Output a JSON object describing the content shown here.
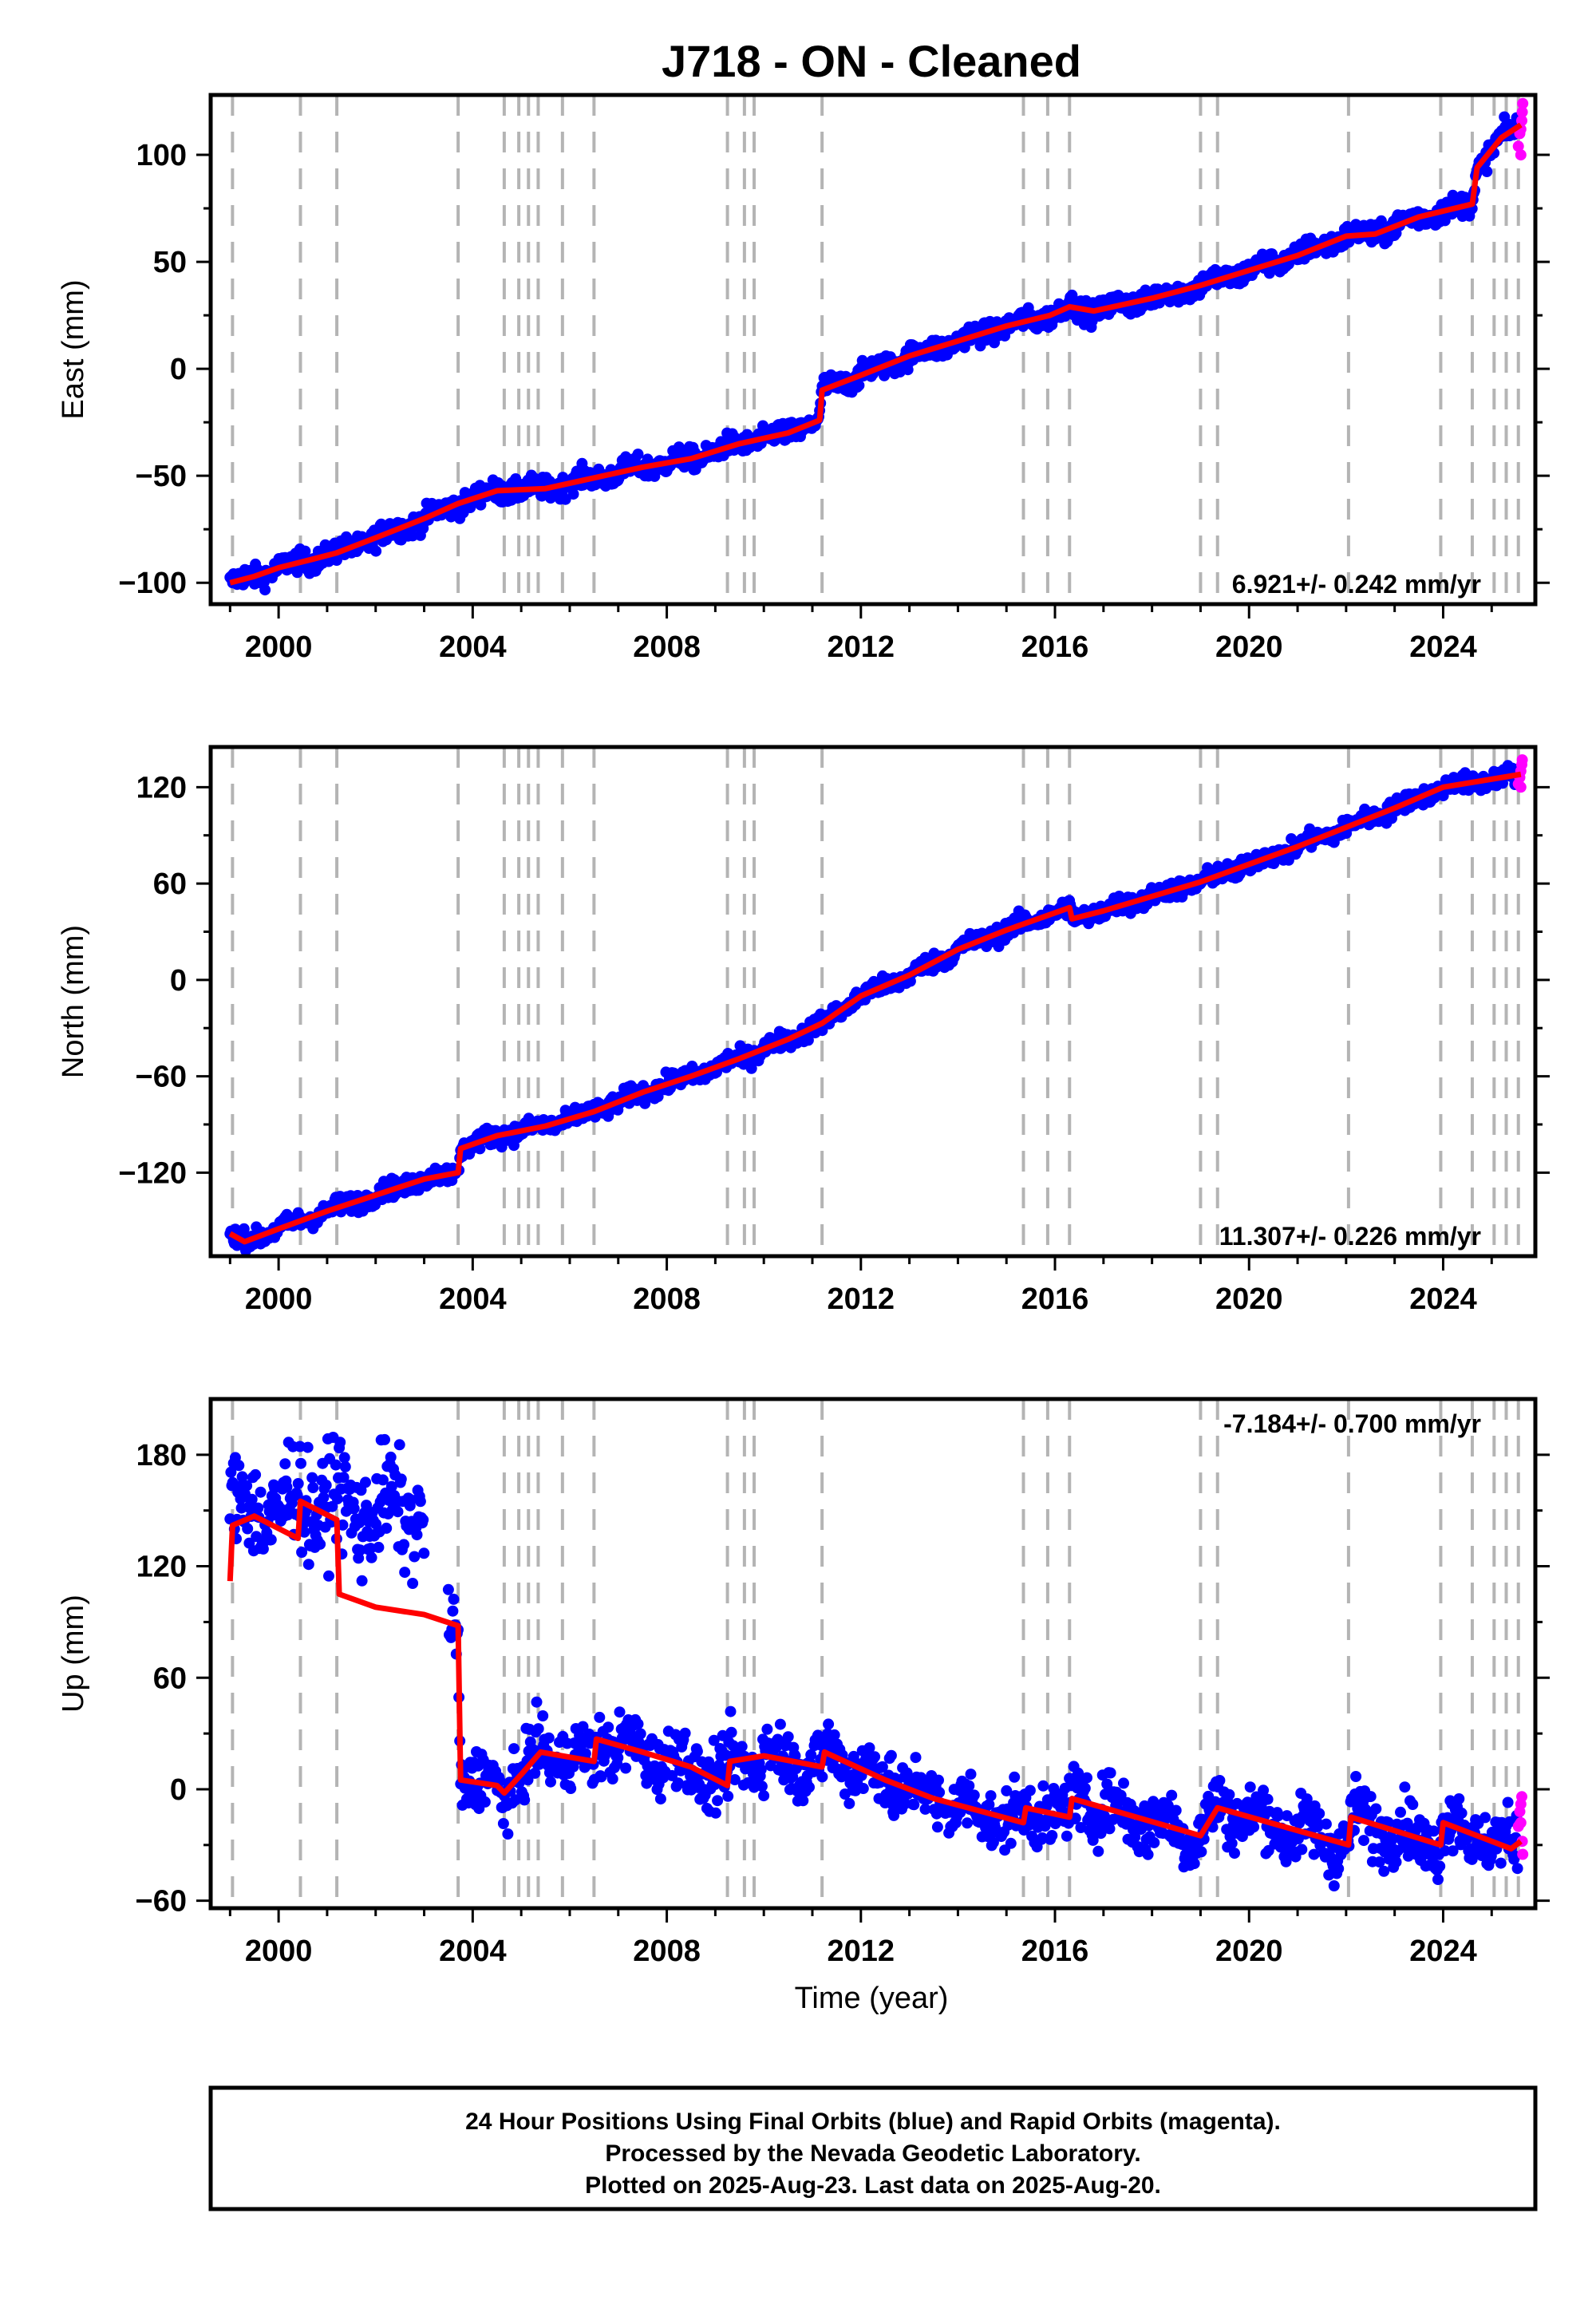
{
  "chart_data": {
    "type": "scatter",
    "title": "J718  - ON - Cleaned",
    "xlabel": "Time (year)",
    "x_ticks": [
      "2000",
      "2004",
      "2008",
      "2012",
      "2016",
      "2020",
      "2024"
    ],
    "xlim": [
      1998.6,
      2025.9
    ],
    "colors": {
      "final": "#0000ff",
      "rapid": "#ff00ff",
      "model": "#ff0000",
      "event": "#b4b4b4"
    },
    "event_years": [
      1999.05,
      2000.45,
      2001.2,
      2003.7,
      2004.65,
      2004.95,
      2005.15,
      2005.35,
      2005.85,
      2006.5,
      2009.25,
      2009.6,
      2009.8,
      2011.2,
      2015.35,
      2015.85,
      2016.3,
      2019.0,
      2019.35,
      2022.05,
      2023.95,
      2024.6,
      2025.05,
      2025.3,
      2025.55
    ],
    "panels": [
      {
        "ylabel": "East (mm)",
        "ylim": [
          -110,
          128
        ],
        "y_ticks": [
          "−100",
          "−50",
          "0",
          "50",
          "100"
        ],
        "y_tick_values": [
          -100,
          -50,
          0,
          50,
          100
        ],
        "rate": "6.921+/- 0.242 mm/yr",
        "rate_position": "bottom-right",
        "scatter_sd": 2.5,
        "model": [
          [
            1999.0,
            -100
          ],
          [
            1999.5,
            -97
          ],
          [
            2000.0,
            -93
          ],
          [
            2000.7,
            -89
          ],
          [
            2001.2,
            -86
          ],
          [
            2002.0,
            -79
          ],
          [
            2003.0,
            -70
          ],
          [
            2003.7,
            -63
          ],
          [
            2004.5,
            -57
          ],
          [
            2005.5,
            -56
          ],
          [
            2006.5,
            -51
          ],
          [
            2007.5,
            -46
          ],
          [
            2008.5,
            -42
          ],
          [
            2009.5,
            -35
          ],
          [
            2010.5,
            -30
          ],
          [
            2011.15,
            -24
          ],
          [
            2011.2,
            -10
          ],
          [
            2012.0,
            -3
          ],
          [
            2013.0,
            6
          ],
          [
            2014.0,
            13
          ],
          [
            2015.0,
            20
          ],
          [
            2015.9,
            25
          ],
          [
            2016.3,
            29
          ],
          [
            2016.8,
            27
          ],
          [
            2018.0,
            33
          ],
          [
            2019.0,
            39
          ],
          [
            2020.0,
            46
          ],
          [
            2021.0,
            53
          ],
          [
            2022.0,
            62
          ],
          [
            2022.6,
            63
          ],
          [
            2023.5,
            71
          ],
          [
            2024.6,
            77
          ],
          [
            2024.7,
            94
          ],
          [
            2025.2,
            108
          ],
          [
            2025.6,
            114
          ]
        ],
        "rapid": [
          [
            2025.55,
            104
          ],
          [
            2025.58,
            110
          ],
          [
            2025.6,
            112
          ],
          [
            2025.62,
            116
          ],
          [
            2025.63,
            120
          ],
          [
            2025.64,
            124
          ],
          [
            2025.6,
            100
          ]
        ]
      },
      {
        "ylabel": "North (mm)",
        "ylim": [
          -172,
          145
        ],
        "y_ticks": [
          "−120",
          "−60",
          "0",
          "60",
          "120"
        ],
        "y_tick_values": [
          -120,
          -60,
          0,
          60,
          120
        ],
        "rate": "11.307+/- 0.226 mm/yr",
        "rate_position": "bottom-right",
        "scatter_sd": 2.8,
        "model": [
          [
            1999.0,
            -158
          ],
          [
            1999.3,
            -163
          ],
          [
            2000.0,
            -155
          ],
          [
            2001.0,
            -144
          ],
          [
            2002.0,
            -134
          ],
          [
            2003.0,
            -124
          ],
          [
            2003.7,
            -120
          ],
          [
            2003.75,
            -105
          ],
          [
            2004.5,
            -97
          ],
          [
            2005.5,
            -91
          ],
          [
            2006.5,
            -82
          ],
          [
            2007.5,
            -70
          ],
          [
            2008.5,
            -60
          ],
          [
            2009.5,
            -49
          ],
          [
            2010.5,
            -37
          ],
          [
            2011.2,
            -27
          ],
          [
            2012.0,
            -10
          ],
          [
            2013.0,
            3
          ],
          [
            2014.0,
            19
          ],
          [
            2015.0,
            31
          ],
          [
            2016.3,
            45
          ],
          [
            2016.35,
            38
          ],
          [
            2017.0,
            43
          ],
          [
            2018.0,
            52
          ],
          [
            2019.0,
            61
          ],
          [
            2020.0,
            72
          ],
          [
            2021.0,
            83
          ],
          [
            2022.0,
            95
          ],
          [
            2023.0,
            107
          ],
          [
            2024.0,
            120
          ],
          [
            2025.0,
            125
          ],
          [
            2025.6,
            128
          ]
        ],
        "rapid": [
          [
            2025.55,
            122
          ],
          [
            2025.58,
            126
          ],
          [
            2025.6,
            130
          ],
          [
            2025.62,
            134
          ],
          [
            2025.63,
            137
          ],
          [
            2025.6,
            120
          ]
        ]
      },
      {
        "ylabel": "Up (mm)",
        "ylim": [
          -64,
          210
        ],
        "y_ticks": [
          "−60",
          "0",
          "60",
          "120",
          "180"
        ],
        "y_tick_values": [
          -60,
          0,
          60,
          120,
          180
        ],
        "rate": "-7.184+/- 0.700 mm/yr",
        "rate_position": "top-right",
        "scatter_sd": 8,
        "model": [
          [
            1999.0,
            112
          ],
          [
            1999.05,
            142
          ],
          [
            1999.5,
            147
          ],
          [
            2000.4,
            135
          ],
          [
            2000.45,
            155
          ],
          [
            2001.2,
            145
          ],
          [
            2001.25,
            105
          ],
          [
            2002.0,
            98
          ],
          [
            2003.0,
            94
          ],
          [
            2003.7,
            88
          ],
          [
            2003.75,
            5
          ],
          [
            2004.5,
            2
          ],
          [
            2004.65,
            -2
          ],
          [
            2005.0,
            8
          ],
          [
            2005.4,
            20
          ],
          [
            2006.5,
            15
          ],
          [
            2006.55,
            27
          ],
          [
            2007.5,
            20
          ],
          [
            2008.5,
            12
          ],
          [
            2009.25,
            2
          ],
          [
            2009.3,
            15
          ],
          [
            2010.0,
            18
          ],
          [
            2011.2,
            12
          ],
          [
            2011.25,
            20
          ],
          [
            2012.5,
            5
          ],
          [
            2013.5,
            -5
          ],
          [
            2015.35,
            -18
          ],
          [
            2015.4,
            -10
          ],
          [
            2016.3,
            -15
          ],
          [
            2016.35,
            -5
          ],
          [
            2019.0,
            -25
          ],
          [
            2019.35,
            -10
          ],
          [
            2022.05,
            -30
          ],
          [
            2022.1,
            -15
          ],
          [
            2023.95,
            -30
          ],
          [
            2024.0,
            -18
          ],
          [
            2025.4,
            -32
          ],
          [
            2025.6,
            -28
          ]
        ],
        "rapid": [
          [
            2025.55,
            -20
          ],
          [
            2025.58,
            -12
          ],
          [
            2025.6,
            -8
          ],
          [
            2025.62,
            -4
          ],
          [
            2025.63,
            -28
          ],
          [
            2025.64,
            -35
          ],
          [
            2025.6,
            -18
          ]
        ]
      }
    ]
  },
  "footer": {
    "line1": "24 Hour Positions Using Final Orbits (blue) and Rapid Orbits (magenta).",
    "line2": "Processed by the Nevada Geodetic Laboratory.",
    "line3": "Plotted on 2025-Aug-23. Last data on 2025-Aug-20."
  }
}
